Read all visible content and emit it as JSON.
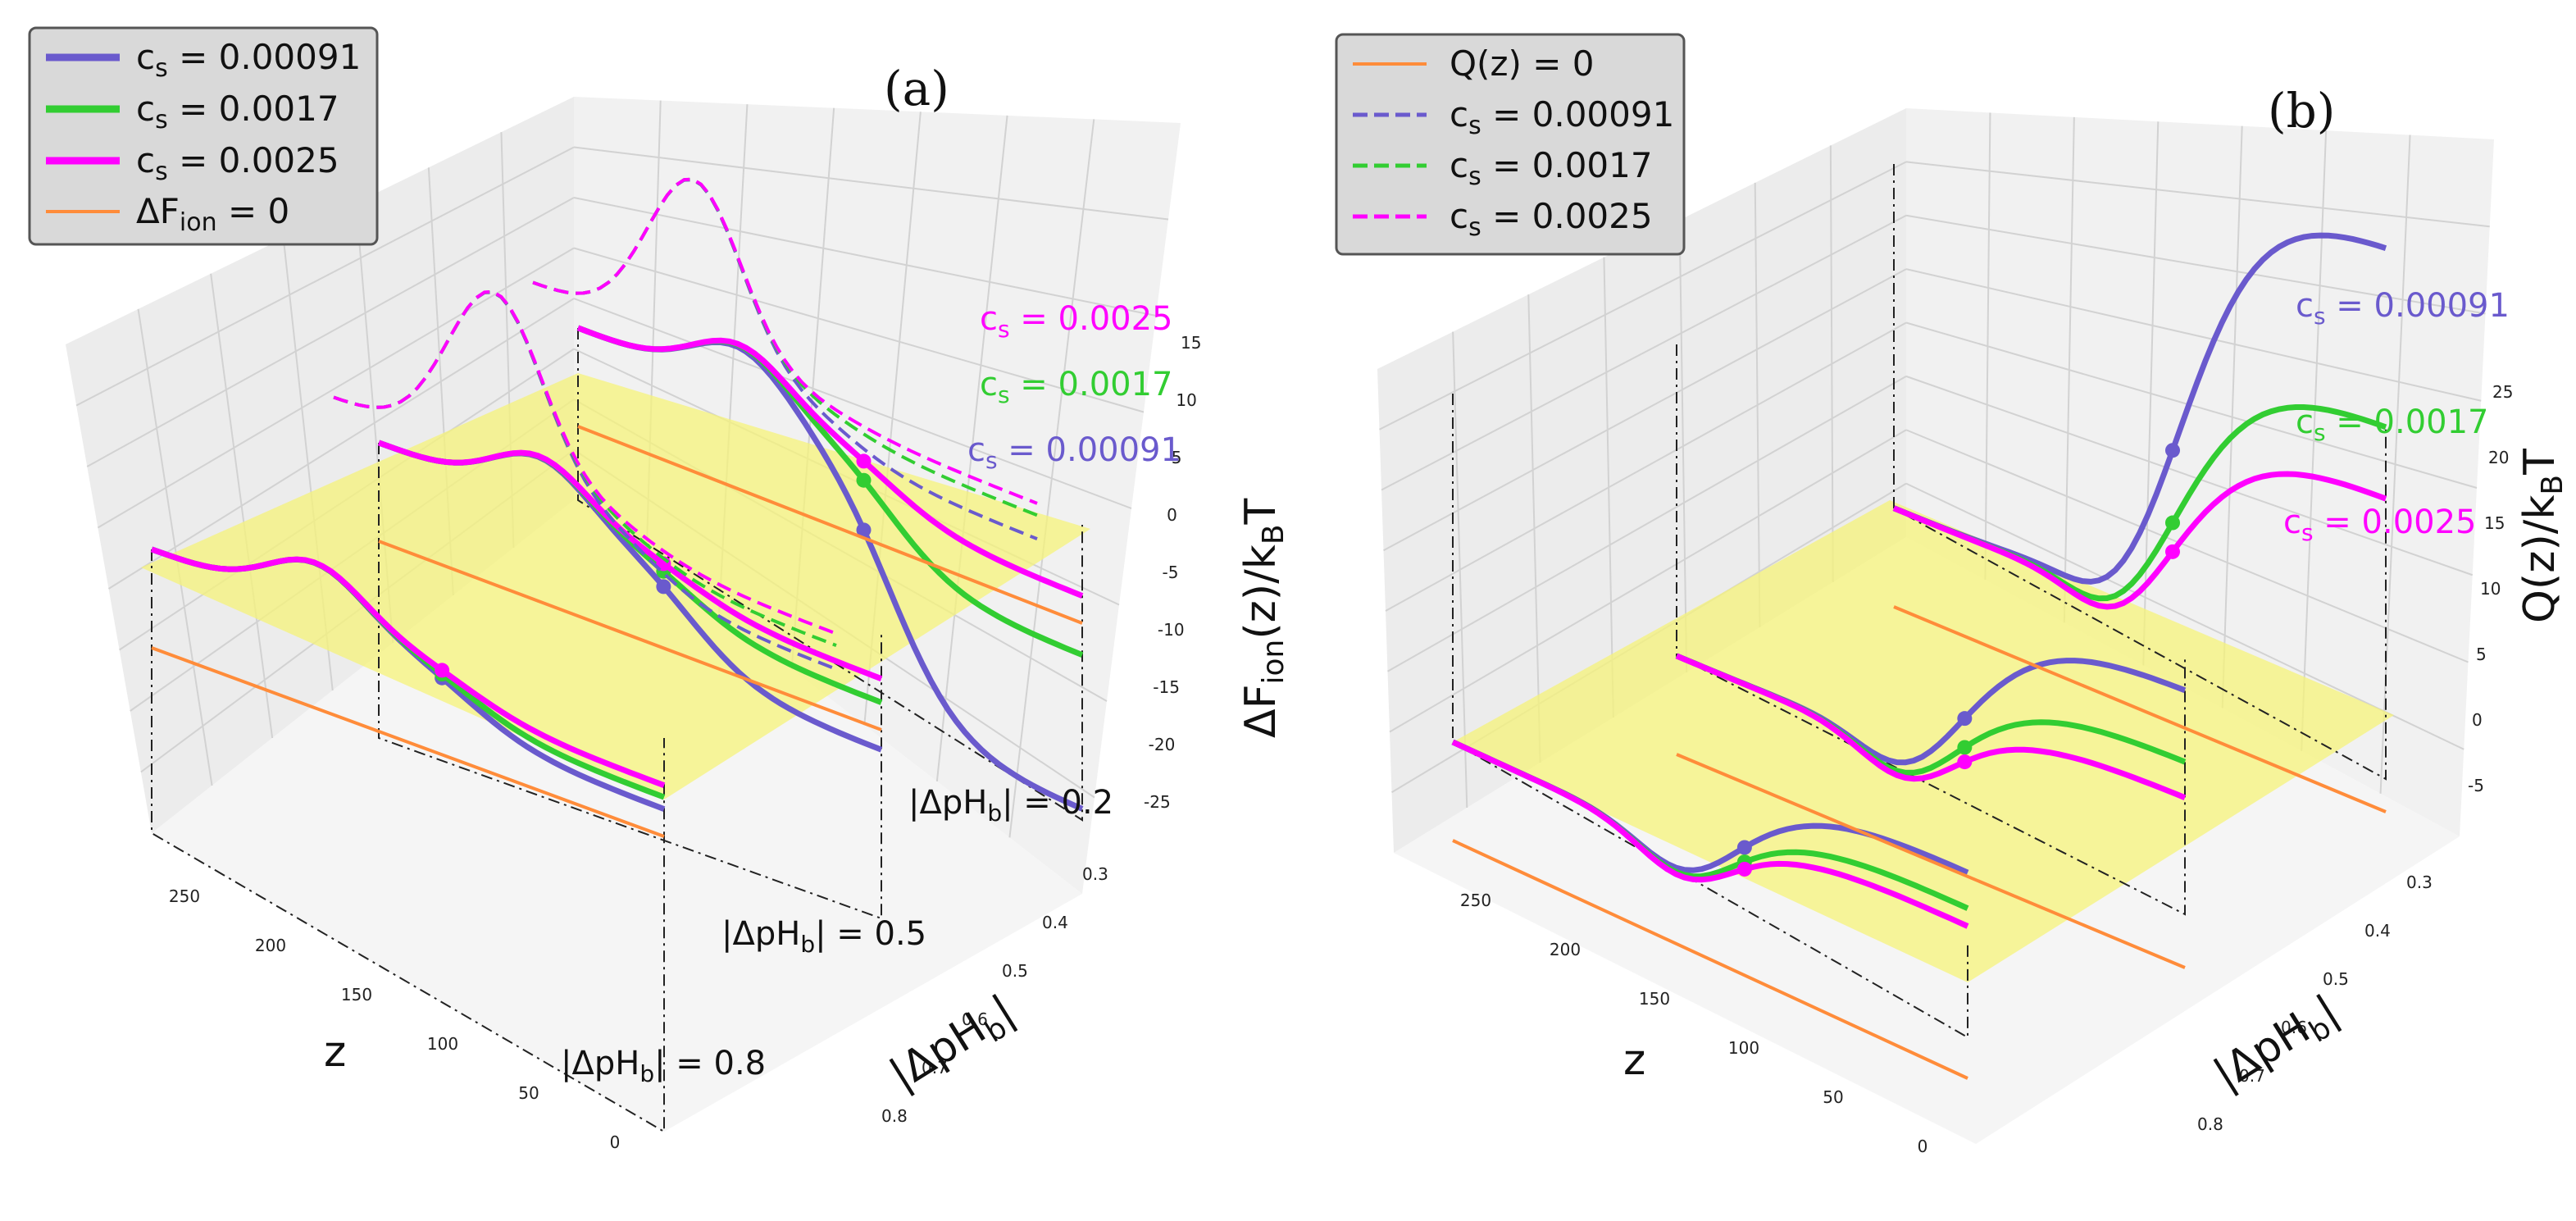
{
  "colors": {
    "cs_00091": "#6a5acd",
    "cs_0017": "#32cd32",
    "cs_0025": "#ff00ff",
    "zero": "#ff8c3a",
    "plane": "#f6f37a"
  },
  "chart_data": [
    {
      "type": "line",
      "panel": "(a)",
      "title": "",
      "xlabel": "z",
      "ylabel": "|ΔpH_b|",
      "zlabel": "ΔF_ion(z)/k_BT",
      "xlim": [
        0,
        275
      ],
      "ylim": [
        0.2,
        0.85
      ],
      "zlim": [
        -25,
        17
      ],
      "x_ticks": [
        "0",
        "50",
        "100",
        "150",
        "200",
        "250"
      ],
      "y_ticks": [
        "0.3",
        "0.4",
        "0.5",
        "0.6",
        "0.7",
        "0.8"
      ],
      "z_ticks": [
        "15",
        "10",
        "5",
        "0",
        "-5",
        "-10",
        "-15",
        "-20",
        "-25"
      ],
      "slices": [
        0.2,
        0.5,
        0.8
      ],
      "slice_labels": [
        "|ΔpH_b| = 0.2",
        "|ΔpH_b| = 0.5",
        "|ΔpH_b| = 0.8"
      ],
      "legend": [
        {
          "label": "c_s = 0.00091",
          "style": "solid-thick",
          "color": "#6a5acd"
        },
        {
          "label": "c_s = 0.0017",
          "style": "solid-thick",
          "color": "#32cd32"
        },
        {
          "label": "c_s = 0.0025",
          "style": "solid-thick",
          "color": "#ff00ff"
        },
        {
          "label": "ΔF_ion = 0",
          "style": "solid-thin",
          "color": "#ff8c3a"
        }
      ],
      "annotations": [
        {
          "text": "c_s = 0.0025",
          "color": "#ff00ff"
        },
        {
          "text": "c_s = 0.0017",
          "color": "#32cd32"
        },
        {
          "text": "c_s = 0.00091",
          "color": "#6a5acd"
        }
      ],
      "series": [
        {
          "name": "c_s = 0.00091",
          "slice": 0.2,
          "style": "solid",
          "color": "#6a5acd",
          "z_end": -24,
          "min_z": 58,
          "min_x": 137
        },
        {
          "name": "c_s = 0.0017",
          "slice": 0.2,
          "style": "solid",
          "color": "#32cd32",
          "z_end": -11,
          "min_z": 80,
          "min_x": 137
        },
        {
          "name": "c_s = 0.0025",
          "slice": 0.2,
          "style": "solid",
          "color": "#ff00ff",
          "z_end": -6,
          "min_z": 95,
          "min_x": 137
        },
        {
          "name": "c_s = 0.00091",
          "slice": 0.5,
          "style": "solid",
          "color": "#6a5acd",
          "z_end": -10,
          "min_z": 140,
          "min_x": 82
        },
        {
          "name": "c_s = 0.0017",
          "slice": 0.5,
          "style": "solid",
          "color": "#32cd32",
          "z_end": -6,
          "min_z": 140,
          "min_x": 82
        },
        {
          "name": "c_s = 0.0025",
          "slice": 0.5,
          "style": "solid",
          "color": "#ff00ff",
          "z_end": -4,
          "min_z": 140,
          "min_x": 82
        },
        {
          "name": "c_s = 0.00091",
          "slice": 0.8,
          "style": "solid",
          "color": "#6a5acd",
          "z_end": -6,
          "min_z": 140,
          "min_x": 82
        },
        {
          "name": "c_s = 0.0017",
          "slice": 0.8,
          "style": "solid",
          "color": "#32cd32",
          "z_end": -5,
          "min_z": 140,
          "min_x": 82
        },
        {
          "name": "c_s = 0.0025",
          "slice": 0.8,
          "style": "solid",
          "color": "#ff00ff",
          "z_end": -4,
          "min_z": 140,
          "min_x": 82
        },
        {
          "name": "c_s = 0.00091",
          "slice": 0.5,
          "style": "dashed",
          "color": "#6a5acd",
          "z_end": -7
        },
        {
          "name": "c_s = 0.0017",
          "slice": 0.5,
          "style": "dashed",
          "color": "#32cd32",
          "z_end": -5
        },
        {
          "name": "c_s = 0.0025",
          "slice": 0.5,
          "style": "dashed",
          "color": "#ff00ff",
          "z_end": -4
        },
        {
          "name": "c_s = 0.00091",
          "slice": 0.2,
          "style": "dashed",
          "color": "#6a5acd",
          "z_end": -5
        },
        {
          "name": "c_s = 0.0017",
          "slice": 0.2,
          "style": "dashed",
          "color": "#32cd32",
          "z_end": -3
        },
        {
          "name": "c_s = 0.0025",
          "slice": 0.2,
          "style": "dashed",
          "color": "#ff00ff",
          "z_end": -2
        }
      ]
    },
    {
      "type": "line",
      "panel": "(b)",
      "title": "",
      "xlabel": "z",
      "ylabel": "|ΔpH_b|",
      "zlabel": "Q(z)/k_BT",
      "xlim": [
        0,
        275
      ],
      "ylim": [
        0.2,
        0.85
      ],
      "zlim": [
        -7,
        28
      ],
      "x_ticks": [
        "0",
        "50",
        "100",
        "150",
        "200",
        "250"
      ],
      "y_ticks": [
        "0.3",
        "0.4",
        "0.5",
        "0.6",
        "0.7",
        "0.8"
      ],
      "z_ticks": [
        "25",
        "20",
        "15",
        "10",
        "5",
        "0",
        "-5"
      ],
      "slices": [
        0.2,
        0.5,
        0.8
      ],
      "legend": [
        {
          "label": "Q(z) = 0",
          "style": "solid-thin",
          "color": "#ff8c3a"
        },
        {
          "label": "c_s = 0.00091",
          "style": "dashed",
          "color": "#6a5acd"
        },
        {
          "label": "c_s = 0.0017",
          "style": "dashed",
          "color": "#32cd32"
        },
        {
          "label": "c_s = 0.0025",
          "style": "dashed",
          "color": "#ff00ff"
        }
      ],
      "annotations": [
        {
          "text": "c_s = 0.00091",
          "color": "#6a5acd"
        },
        {
          "text": "c_s = 0.0017",
          "color": "#32cd32"
        },
        {
          "text": "c_s = 0.0025",
          "color": "#ff00ff"
        }
      ],
      "series": [
        {
          "name": "c_s = 0.00091",
          "slice": 0.2,
          "style": "solid",
          "color": "#6a5acd",
          "z_end": 26
        },
        {
          "name": "c_s = 0.0017",
          "slice": 0.2,
          "style": "solid",
          "color": "#32cd32",
          "z_end": 16
        },
        {
          "name": "c_s = 0.0025",
          "slice": 0.2,
          "style": "solid",
          "color": "#ff00ff",
          "z_end": 12
        },
        {
          "name": "c_s = 0.00091",
          "slice": 0.5,
          "style": "solid",
          "color": "#6a5acd",
          "z_end": 10
        },
        {
          "name": "c_s = 0.0017",
          "slice": 0.5,
          "style": "solid",
          "color": "#32cd32",
          "z_end": 6
        },
        {
          "name": "c_s = 0.0025",
          "slice": 0.5,
          "style": "solid",
          "color": "#ff00ff",
          "z_end": 4
        },
        {
          "name": "c_s = 0.00091",
          "slice": 0.8,
          "style": "solid",
          "color": "#6a5acd",
          "z_end": 6
        },
        {
          "name": "c_s = 0.0017",
          "slice": 0.8,
          "style": "solid",
          "color": "#32cd32",
          "z_end": 4
        },
        {
          "name": "c_s = 0.0025",
          "slice": 0.8,
          "style": "solid",
          "color": "#ff00ff",
          "z_end": 3
        }
      ]
    }
  ]
}
